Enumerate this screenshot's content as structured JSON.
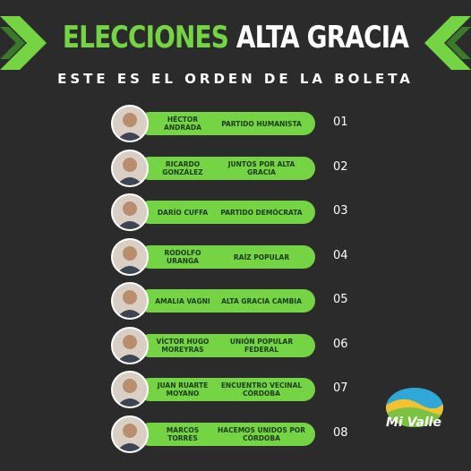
{
  "header": {
    "title_part1": "ELECCIONES",
    "title_part2": "ALTA GRACIA",
    "subtitle": "ESTE ES EL ORDEN DE LA BOLETA"
  },
  "candidates": [
    {
      "name": "HÉCTOR ANDRADA",
      "party": "PARTIDO HUMANISTA",
      "number": "01"
    },
    {
      "name": "RICARDO GONZÁLEZ",
      "party": "JUNTOS POR ALTA GRACIA",
      "number": "02"
    },
    {
      "name": "DARÍO CUFFA",
      "party": "PARTIDO DEMÓCRATA",
      "number": "03"
    },
    {
      "name": "RODOLFO URANGA",
      "party": "RAÍZ POPULAR",
      "number": "04"
    },
    {
      "name": "AMALIA VAGNI",
      "party": "ALTA GRACIA CAMBIA",
      "number": "05"
    },
    {
      "name": "VÍCTOR HUGO MOREYRAS",
      "party": "UNIÓN POPULAR FEDERAL",
      "number": "06"
    },
    {
      "name": "JUAN RUARTE MOYANO",
      "party": "ENCUENTRO VECINAL CÓRDOBA",
      "number": "07"
    },
    {
      "name": "MARCOS TORRES",
      "party": "HACEMOS UNIDOS POR CÓRDOBA",
      "number": "08"
    }
  ],
  "brand": {
    "logo_text": "Mi Valle",
    "accent": "#74d443",
    "background": "#2b2b2c"
  }
}
